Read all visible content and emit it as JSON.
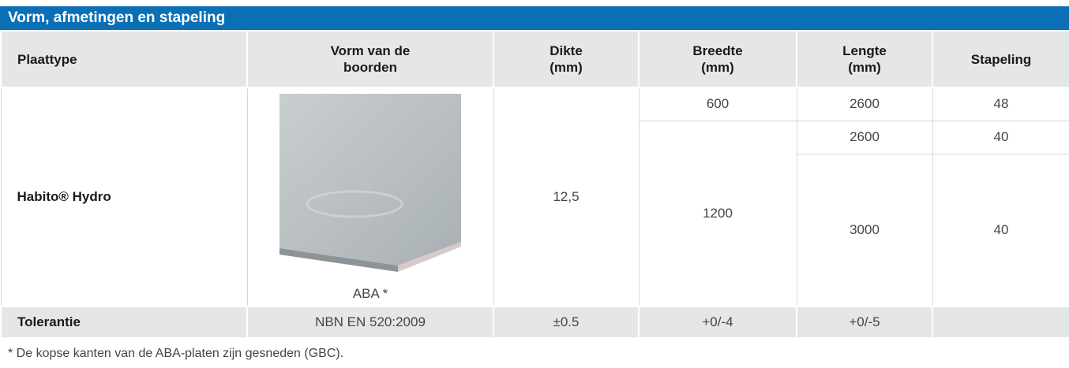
{
  "title": "Vorm, afmetingen en stapeling",
  "table": {
    "header": [
      "Plaattype",
      "Vorm van de\nboorden",
      "Dikte\n(mm)",
      "Breedte\n(mm)",
      "Lengte\n(mm)",
      "Stapeling"
    ],
    "product": "Habito® Hydro",
    "edge_caption": "ABA *",
    "thickness": "12,5",
    "widths": [
      600,
      1200
    ],
    "lengths": [
      2600,
      2600,
      3000
    ],
    "stacking": [
      48,
      40,
      40
    ],
    "tolerance": [
      "Tolerantie",
      "NBN EN 520:2009",
      "±0.5",
      "+0/-4",
      "+0/-5"
    ]
  },
  "footnote": "* De kopse kanten van de ABA-platen zijn gesneden (GBC)."
}
